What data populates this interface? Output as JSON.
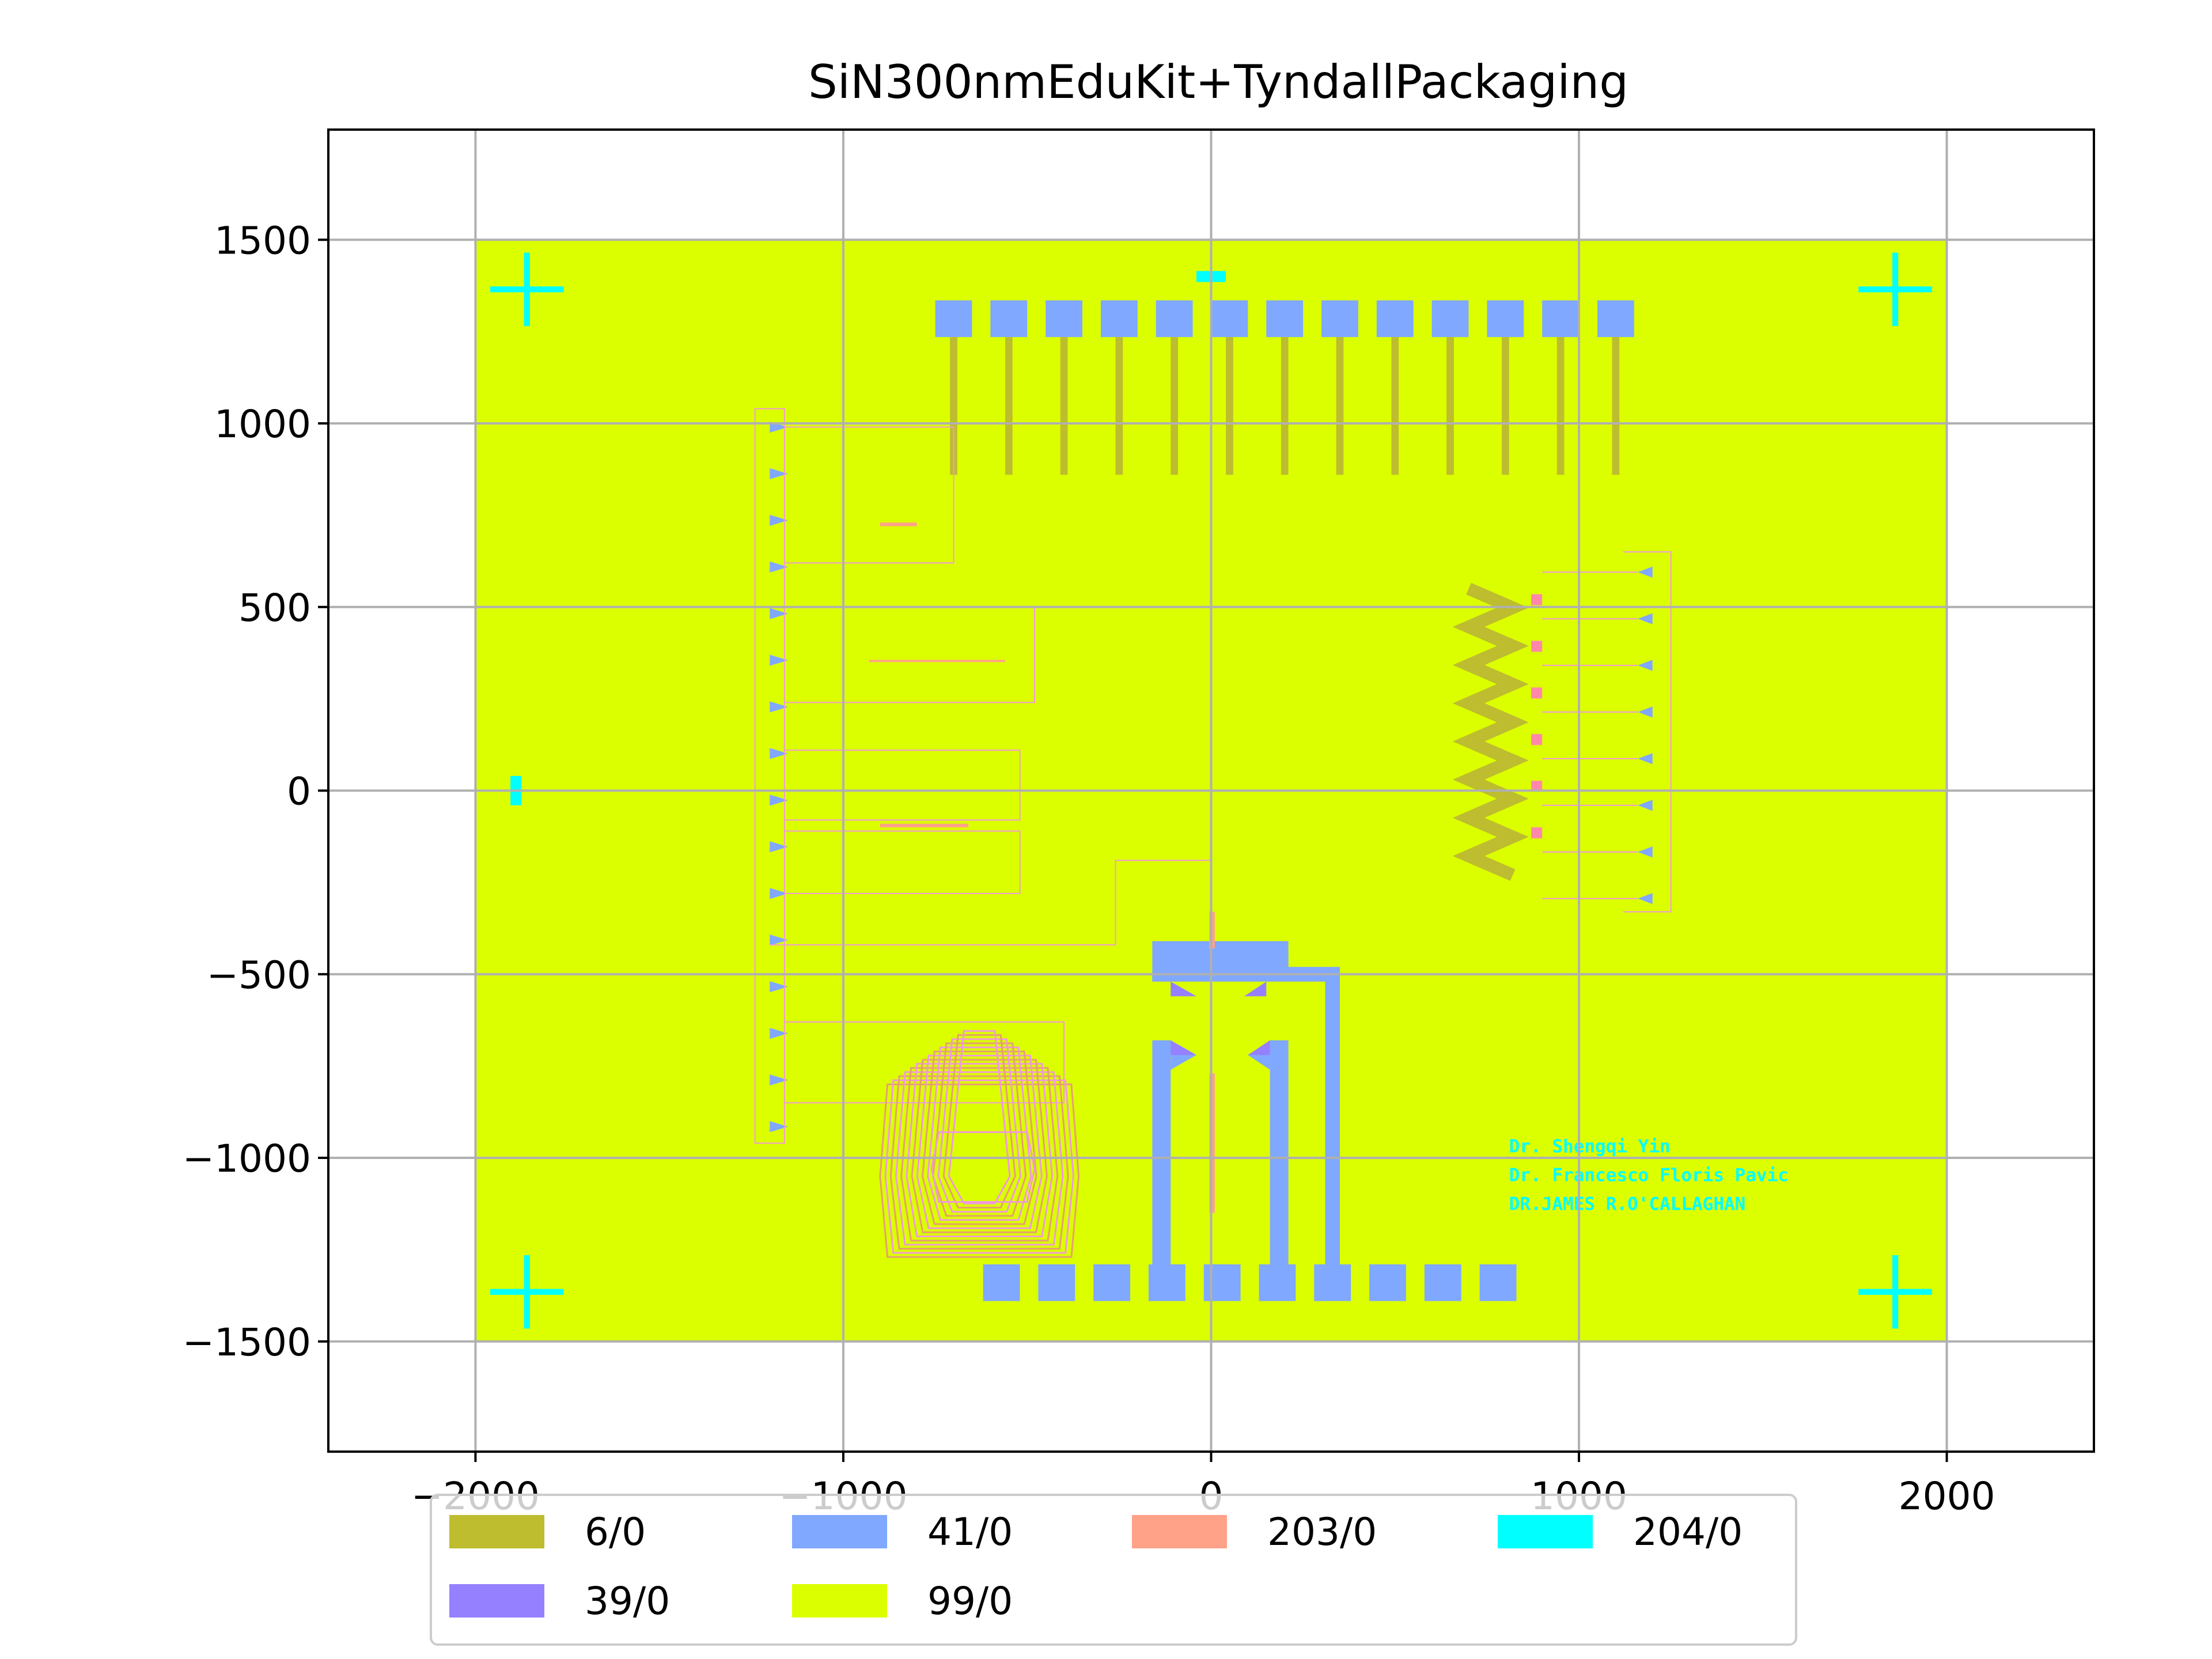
{
  "chart_data": {
    "type": "layout",
    "title": "SiN300nmEduKit+TyndallPackaging",
    "xlim": [
      -2400,
      2400
    ],
    "ylim": [
      -1800,
      1800
    ],
    "xticks": [
      -2000,
      -1000,
      0,
      1000,
      2000
    ],
    "xtick_labels": [
      "−2000",
      "−1000",
      "0",
      "1000",
      "2000"
    ],
    "yticks": [
      1500,
      1000,
      500,
      0,
      -500,
      -1000,
      -1500
    ],
    "ytick_labels": [
      "1500",
      "1000",
      "500",
      "0",
      "−500",
      "−1000",
      "−1500"
    ],
    "grid": true,
    "legend": {
      "placement": "bottom-center",
      "entries": [
        {
          "label": "6/0",
          "color": "#bdbd2f"
        },
        {
          "label": "41/0",
          "color": "#80a8ff"
        },
        {
          "label": "203/0",
          "color": "#ffa288"
        },
        {
          "label": "204/0",
          "color": "#00ffff"
        },
        {
          "label": "39/0",
          "color": "#9580ff"
        },
        {
          "label": "99/0",
          "color": "#dcff00"
        }
      ]
    },
    "colors": {
      "layer_6": "#bdbd2f",
      "layer_39": "#9580ff",
      "layer_41": "#80a8ff",
      "layer_99": "#dcff00",
      "layer_203": "#ffa288",
      "layer_204": "#00ffff"
    },
    "die": {
      "x0": -2000,
      "x1": 2000,
      "y0": -1500,
      "y1": 1500
    },
    "top_pads": {
      "count": 13,
      "x_start": -700,
      "pitch": 150,
      "y": 1285,
      "size": 100
    },
    "bottom_pads": {
      "count": 10,
      "x_start": -570,
      "pitch": 150,
      "y": -1340,
      "size": 100
    },
    "alignment_marks": [
      {
        "x": -1860,
        "y": 1365
      },
      {
        "x": 1860,
        "y": 1365
      },
      {
        "x": -1860,
        "y": -1365
      },
      {
        "x": 1860,
        "y": -1365
      }
    ],
    "authors": [
      "Dr. Shengqi Yin",
      "Dr. Francesco Floris Pavic",
      "DR.JAMES R.O'CALLAGHAN"
    ]
  }
}
